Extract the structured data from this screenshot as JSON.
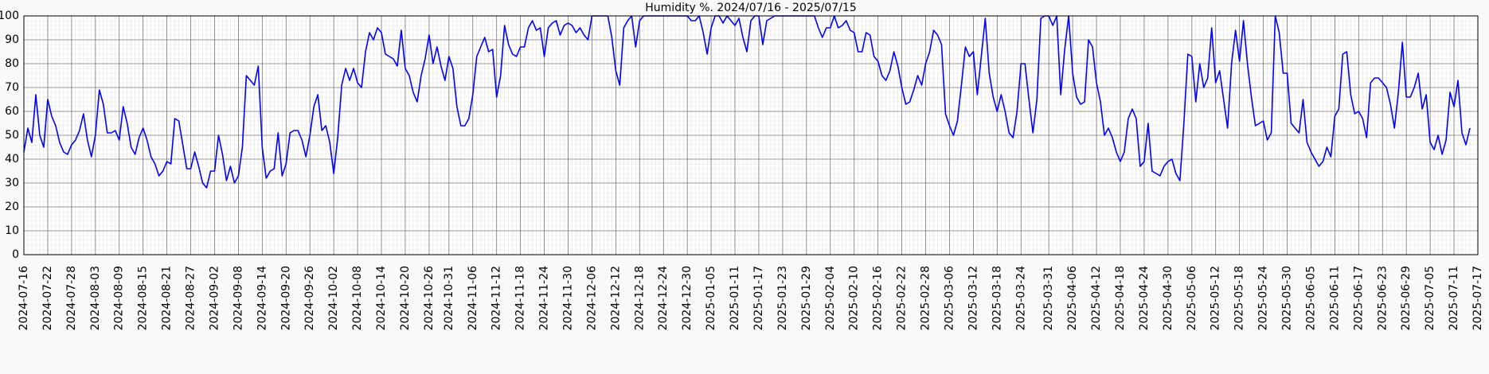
{
  "chart_data": {
    "type": "line",
    "title": "Humidity %. 2024/07/16 - 2025/07/15",
    "x": [
      "2024-07-16",
      "2024-07-17",
      "2024-07-18",
      "2024-07-19",
      "2024-07-20",
      "2024-07-21",
      "2024-07-22",
      "2024-07-23",
      "2024-07-24",
      "2024-07-25",
      "2024-07-26",
      "2024-07-27",
      "2024-07-28",
      "2024-07-29",
      "2024-07-30",
      "2024-07-31",
      "2024-08-01",
      "2024-08-02",
      "2024-08-03",
      "2024-08-04",
      "2024-08-05",
      "2024-08-06",
      "2024-08-07",
      "2024-08-08",
      "2024-08-09",
      "2024-08-10",
      "2024-08-11",
      "2024-08-12",
      "2024-08-13",
      "2024-08-14",
      "2024-08-15",
      "2024-08-16",
      "2024-08-17",
      "2024-08-18",
      "2024-08-19",
      "2024-08-20",
      "2024-08-21",
      "2024-08-22",
      "2024-08-23",
      "2024-08-24",
      "2024-08-25",
      "2024-08-26",
      "2024-08-27",
      "2024-08-28",
      "2024-08-29",
      "2024-08-30",
      "2024-08-31",
      "2024-09-01",
      "2024-09-02",
      "2024-09-03",
      "2024-09-04",
      "2024-09-05",
      "2024-09-06",
      "2024-09-07",
      "2024-09-08",
      "2024-09-09",
      "2024-09-10",
      "2024-09-11",
      "2024-09-12",
      "2024-09-13",
      "2024-09-14",
      "2024-09-15",
      "2024-09-16",
      "2024-09-17",
      "2024-09-18",
      "2024-09-19",
      "2024-09-20",
      "2024-09-21",
      "2024-09-22",
      "2024-09-23",
      "2024-09-24",
      "2024-09-25",
      "2024-09-26",
      "2024-09-27",
      "2024-09-28",
      "2024-09-29",
      "2024-09-30",
      "2024-10-01",
      "2024-10-02",
      "2024-10-03",
      "2024-10-04",
      "2024-10-05",
      "2024-10-06",
      "2024-10-07",
      "2024-10-08",
      "2024-10-09",
      "2024-10-10",
      "2024-10-11",
      "2024-10-12",
      "2024-10-13",
      "2024-10-14",
      "2024-10-15",
      "2024-10-16",
      "2024-10-17",
      "2024-10-18",
      "2024-10-19",
      "2024-10-20",
      "2024-10-21",
      "2024-10-22",
      "2024-10-23",
      "2024-10-24",
      "2024-10-25",
      "2024-10-26",
      "2024-10-27",
      "2024-10-28",
      "2024-10-29",
      "2024-10-30",
      "2024-10-31",
      "2024-11-01",
      "2024-11-02",
      "2024-11-03",
      "2024-11-04",
      "2024-11-05",
      "2024-11-06",
      "2024-11-07",
      "2024-11-08",
      "2024-11-09",
      "2024-11-10",
      "2024-11-11",
      "2024-11-12",
      "2024-11-13",
      "2024-11-14",
      "2024-11-15",
      "2024-11-16",
      "2024-11-17",
      "2024-11-18",
      "2024-11-19",
      "2024-11-20",
      "2024-11-21",
      "2024-11-22",
      "2024-11-23",
      "2024-11-24",
      "2024-11-25",
      "2024-11-26",
      "2024-11-27",
      "2024-11-28",
      "2024-11-29",
      "2024-11-30",
      "2024-12-01",
      "2024-12-02",
      "2024-12-03",
      "2024-12-04",
      "2024-12-05",
      "2024-12-06",
      "2024-12-07",
      "2024-12-08",
      "2024-12-09",
      "2024-12-10",
      "2024-12-11",
      "2024-12-12",
      "2024-12-13",
      "2024-12-14",
      "2024-12-15",
      "2024-12-16",
      "2024-12-17",
      "2024-12-18",
      "2024-12-19",
      "2024-12-20",
      "2024-12-21",
      "2024-12-22",
      "2024-12-23",
      "2024-12-24",
      "2024-12-25",
      "2024-12-26",
      "2024-12-27",
      "2024-12-28",
      "2024-12-29",
      "2024-12-30",
      "2024-12-31",
      "2025-01-01",
      "2025-01-02",
      "2025-01-03",
      "2025-01-04",
      "2025-01-05",
      "2025-01-06",
      "2025-01-07",
      "2025-01-08",
      "2025-01-09",
      "2025-01-10",
      "2025-01-11",
      "2025-01-12",
      "2025-01-13",
      "2025-01-14",
      "2025-01-15",
      "2025-01-16",
      "2025-01-17",
      "2025-01-18",
      "2025-01-19",
      "2025-01-20",
      "2025-01-21",
      "2025-01-22",
      "2025-01-23",
      "2025-01-24",
      "2025-01-25",
      "2025-01-26",
      "2025-01-27",
      "2025-01-28",
      "2025-01-29",
      "2025-01-30",
      "2025-01-31",
      "2025-02-01",
      "2025-02-02",
      "2025-02-03",
      "2025-02-04",
      "2025-02-05",
      "2025-02-06",
      "2025-02-07",
      "2025-02-08",
      "2025-02-09",
      "2025-02-10",
      "2025-02-11",
      "2025-02-12",
      "2025-02-13",
      "2025-02-14",
      "2025-02-15",
      "2025-02-16",
      "2025-02-17",
      "2025-02-18",
      "2025-02-19",
      "2025-02-20",
      "2025-02-21",
      "2025-02-22",
      "2025-02-23",
      "2025-02-24",
      "2025-02-25",
      "2025-02-26",
      "2025-02-27",
      "2025-02-28",
      "2025-03-01",
      "2025-03-02",
      "2025-03-03",
      "2025-03-04",
      "2025-03-05",
      "2025-03-06",
      "2025-03-07",
      "2025-03-08",
      "2025-03-09",
      "2025-03-10",
      "2025-03-11",
      "2025-03-12",
      "2025-03-13",
      "2025-03-14",
      "2025-03-15",
      "2025-03-16",
      "2025-03-17",
      "2025-03-18",
      "2025-03-19",
      "2025-03-20",
      "2025-03-21",
      "2025-03-22",
      "2025-03-23",
      "2025-03-24",
      "2025-03-25",
      "2025-03-26",
      "2025-03-27",
      "2025-03-28",
      "2025-03-29",
      "2025-03-30",
      "2025-03-31",
      "2025-04-01",
      "2025-04-02",
      "2025-04-03",
      "2025-04-04",
      "2025-04-05",
      "2025-04-06",
      "2025-04-07",
      "2025-04-08",
      "2025-04-09",
      "2025-04-10",
      "2025-04-11",
      "2025-04-12",
      "2025-04-13",
      "2025-04-14",
      "2025-04-15",
      "2025-04-16",
      "2025-04-17",
      "2025-04-18",
      "2025-04-19",
      "2025-04-20",
      "2025-04-21",
      "2025-04-22",
      "2025-04-23",
      "2025-04-24",
      "2025-04-25",
      "2025-04-26",
      "2025-04-27",
      "2025-04-28",
      "2025-04-29",
      "2025-04-30",
      "2025-05-01",
      "2025-05-02",
      "2025-05-03",
      "2025-05-04",
      "2025-05-05",
      "2025-05-06",
      "2025-05-07",
      "2025-05-08",
      "2025-05-09",
      "2025-05-10",
      "2025-05-11",
      "2025-05-12",
      "2025-05-13",
      "2025-05-14",
      "2025-05-15",
      "2025-05-16",
      "2025-05-17",
      "2025-05-18",
      "2025-05-19",
      "2025-05-20",
      "2025-05-21",
      "2025-05-22",
      "2025-05-23",
      "2025-05-24",
      "2025-05-25",
      "2025-05-26",
      "2025-05-27",
      "2025-05-28",
      "2025-05-29",
      "2025-05-30",
      "2025-05-31",
      "2025-06-01",
      "2025-06-02",
      "2025-06-03",
      "2025-06-04",
      "2025-06-05",
      "2025-06-06",
      "2025-06-07",
      "2025-06-08",
      "2025-06-09",
      "2025-06-10",
      "2025-06-11",
      "2025-06-12",
      "2025-06-13",
      "2025-06-14",
      "2025-06-15",
      "2025-06-16",
      "2025-06-17",
      "2025-06-18",
      "2025-06-19",
      "2025-06-20",
      "2025-06-21",
      "2025-06-22",
      "2025-06-23",
      "2025-06-24",
      "2025-06-25",
      "2025-06-26",
      "2025-06-27",
      "2025-06-28",
      "2025-06-29",
      "2025-06-30",
      "2025-07-01",
      "2025-07-02",
      "2025-07-03",
      "2025-07-04",
      "2025-07-05",
      "2025-07-06",
      "2025-07-07",
      "2025-07-08",
      "2025-07-09",
      "2025-07-10",
      "2025-07-11",
      "2025-07-12",
      "2025-07-13",
      "2025-07-14",
      "2025-07-15"
    ],
    "series": [
      {
        "name": "Humidity",
        "color": "#0000ff",
        "values": [
          43,
          53,
          47,
          67,
          50,
          45,
          65,
          58,
          54,
          47,
          43,
          42,
          46,
          48,
          52,
          59,
          48,
          41,
          50,
          69,
          63,
          51,
          51,
          52,
          48,
          62,
          55,
          45,
          42,
          49,
          53,
          48,
          41,
          38,
          33,
          35,
          39,
          38,
          57,
          56,
          46,
          36,
          36,
          43,
          37,
          30,
          28,
          35,
          35,
          50,
          42,
          31,
          37,
          30,
          33,
          45,
          75,
          73,
          71,
          79,
          45,
          32,
          35,
          36,
          51,
          33,
          38,
          51,
          52,
          52,
          48,
          41,
          50,
          62,
          67,
          52,
          54,
          47,
          34,
          49,
          71,
          78,
          73,
          78,
          72,
          70,
          85,
          93,
          90,
          95,
          93,
          84,
          83,
          82,
          79,
          94,
          78,
          75,
          68,
          64,
          75,
          82,
          92,
          80,
          87,
          79,
          73,
          83,
          78,
          62,
          54,
          54,
          57,
          67,
          83,
          87,
          91,
          85,
          86,
          66,
          75,
          96,
          88,
          84,
          83,
          87,
          87,
          95,
          98,
          94,
          95,
          83,
          95,
          97,
          98,
          92,
          96,
          97,
          96,
          93,
          95,
          92,
          90,
          100,
          100,
          100,
          100,
          100,
          91,
          77,
          71,
          95,
          98,
          100,
          87,
          98,
          100,
          100,
          100,
          100,
          100,
          100,
          100,
          100,
          100,
          100,
          100,
          100,
          98,
          98,
          100,
          93,
          84,
          95,
          100,
          100,
          97,
          100,
          98,
          96,
          99,
          91,
          85,
          98,
          100,
          100,
          88,
          98,
          99,
          100,
          100,
          100,
          100,
          100,
          100,
          100,
          100,
          100,
          100,
          100,
          95,
          91,
          95,
          95,
          100,
          95,
          96,
          98,
          94,
          93,
          85,
          85,
          93,
          92,
          83,
          81,
          75,
          73,
          77,
          85,
          79,
          70,
          63,
          64,
          69,
          75,
          71,
          80,
          85,
          94,
          92,
          88,
          59,
          54,
          50,
          56,
          71,
          87,
          83,
          85,
          67,
          83,
          99,
          76,
          66,
          60,
          67,
          60,
          51,
          49,
          60,
          80,
          80,
          65,
          51,
          65,
          99,
          100,
          100,
          96,
          100,
          67,
          86,
          100,
          76,
          66,
          63,
          64,
          90,
          87,
          72,
          64,
          50,
          53,
          49,
          43,
          39,
          43,
          57,
          61,
          57,
          37,
          39,
          55,
          35,
          34,
          33,
          37,
          39,
          40,
          34,
          31,
          55,
          84,
          83,
          64,
          80,
          70,
          74,
          95,
          72,
          77,
          65,
          53,
          80,
          94,
          81,
          98,
          80,
          66,
          54,
          55,
          56,
          48,
          51,
          100,
          93,
          76,
          76,
          55,
          53,
          51,
          65,
          47,
          43,
          40,
          37,
          39,
          45,
          41,
          58,
          61,
          84,
          85,
          67,
          59,
          60,
          57,
          49,
          72,
          74,
          74,
          72,
          70,
          63,
          53,
          68,
          89,
          66,
          66,
          70,
          76,
          61,
          67,
          47,
          44,
          50,
          42,
          48,
          68,
          62,
          73,
          51,
          46,
          53
        ]
      }
    ],
    "xlim": [
      "2024-07-16",
      "2025-07-17"
    ],
    "xticks": [
      "2024-07-16",
      "2024-07-22",
      "2024-07-28",
      "2024-08-03",
      "2024-08-09",
      "2024-08-15",
      "2024-08-21",
      "2024-08-27",
      "2024-09-02",
      "2024-09-08",
      "2024-09-14",
      "2024-09-20",
      "2024-09-26",
      "2024-10-02",
      "2024-10-08",
      "2024-10-14",
      "2024-10-20",
      "2024-10-26",
      "2024-10-31",
      "2024-11-06",
      "2024-11-12",
      "2024-11-18",
      "2024-11-24",
      "2024-11-30",
      "2024-12-06",
      "2024-12-12",
      "2024-12-18",
      "2024-12-24",
      "2024-12-30",
      "2025-01-05",
      "2025-01-11",
      "2025-01-17",
      "2025-01-23",
      "2025-01-29",
      "2025-02-04",
      "2025-02-10",
      "2025-02-16",
      "2025-02-22",
      "2025-02-28",
      "2025-03-06",
      "2025-03-12",
      "2025-03-18",
      "2025-03-24",
      "2025-03-31",
      "2025-04-06",
      "2025-04-12",
      "2025-04-18",
      "2025-04-24",
      "2025-04-30",
      "2025-05-06",
      "2025-05-12",
      "2025-05-18",
      "2025-05-24",
      "2025-05-30",
      "2025-06-05",
      "2025-06-11",
      "2025-06-17",
      "2025-06-23",
      "2025-06-29",
      "2025-07-05",
      "2025-07-11",
      "2025-07-17"
    ],
    "ylim": [
      0,
      100
    ],
    "yticks": [
      0,
      10,
      20,
      30,
      40,
      50,
      60,
      70,
      80,
      90,
      100
    ],
    "yminorticks": [
      2,
      4,
      6,
      8,
      12,
      14,
      16,
      18,
      22,
      24,
      26,
      28,
      32,
      34,
      36,
      38,
      42,
      44,
      46,
      48,
      52,
      54,
      56,
      58,
      62,
      64,
      66,
      68,
      72,
      74,
      76,
      78,
      82,
      84,
      86,
      88,
      92,
      94,
      96,
      98
    ],
    "grid": true,
    "minor_grid": true
  }
}
